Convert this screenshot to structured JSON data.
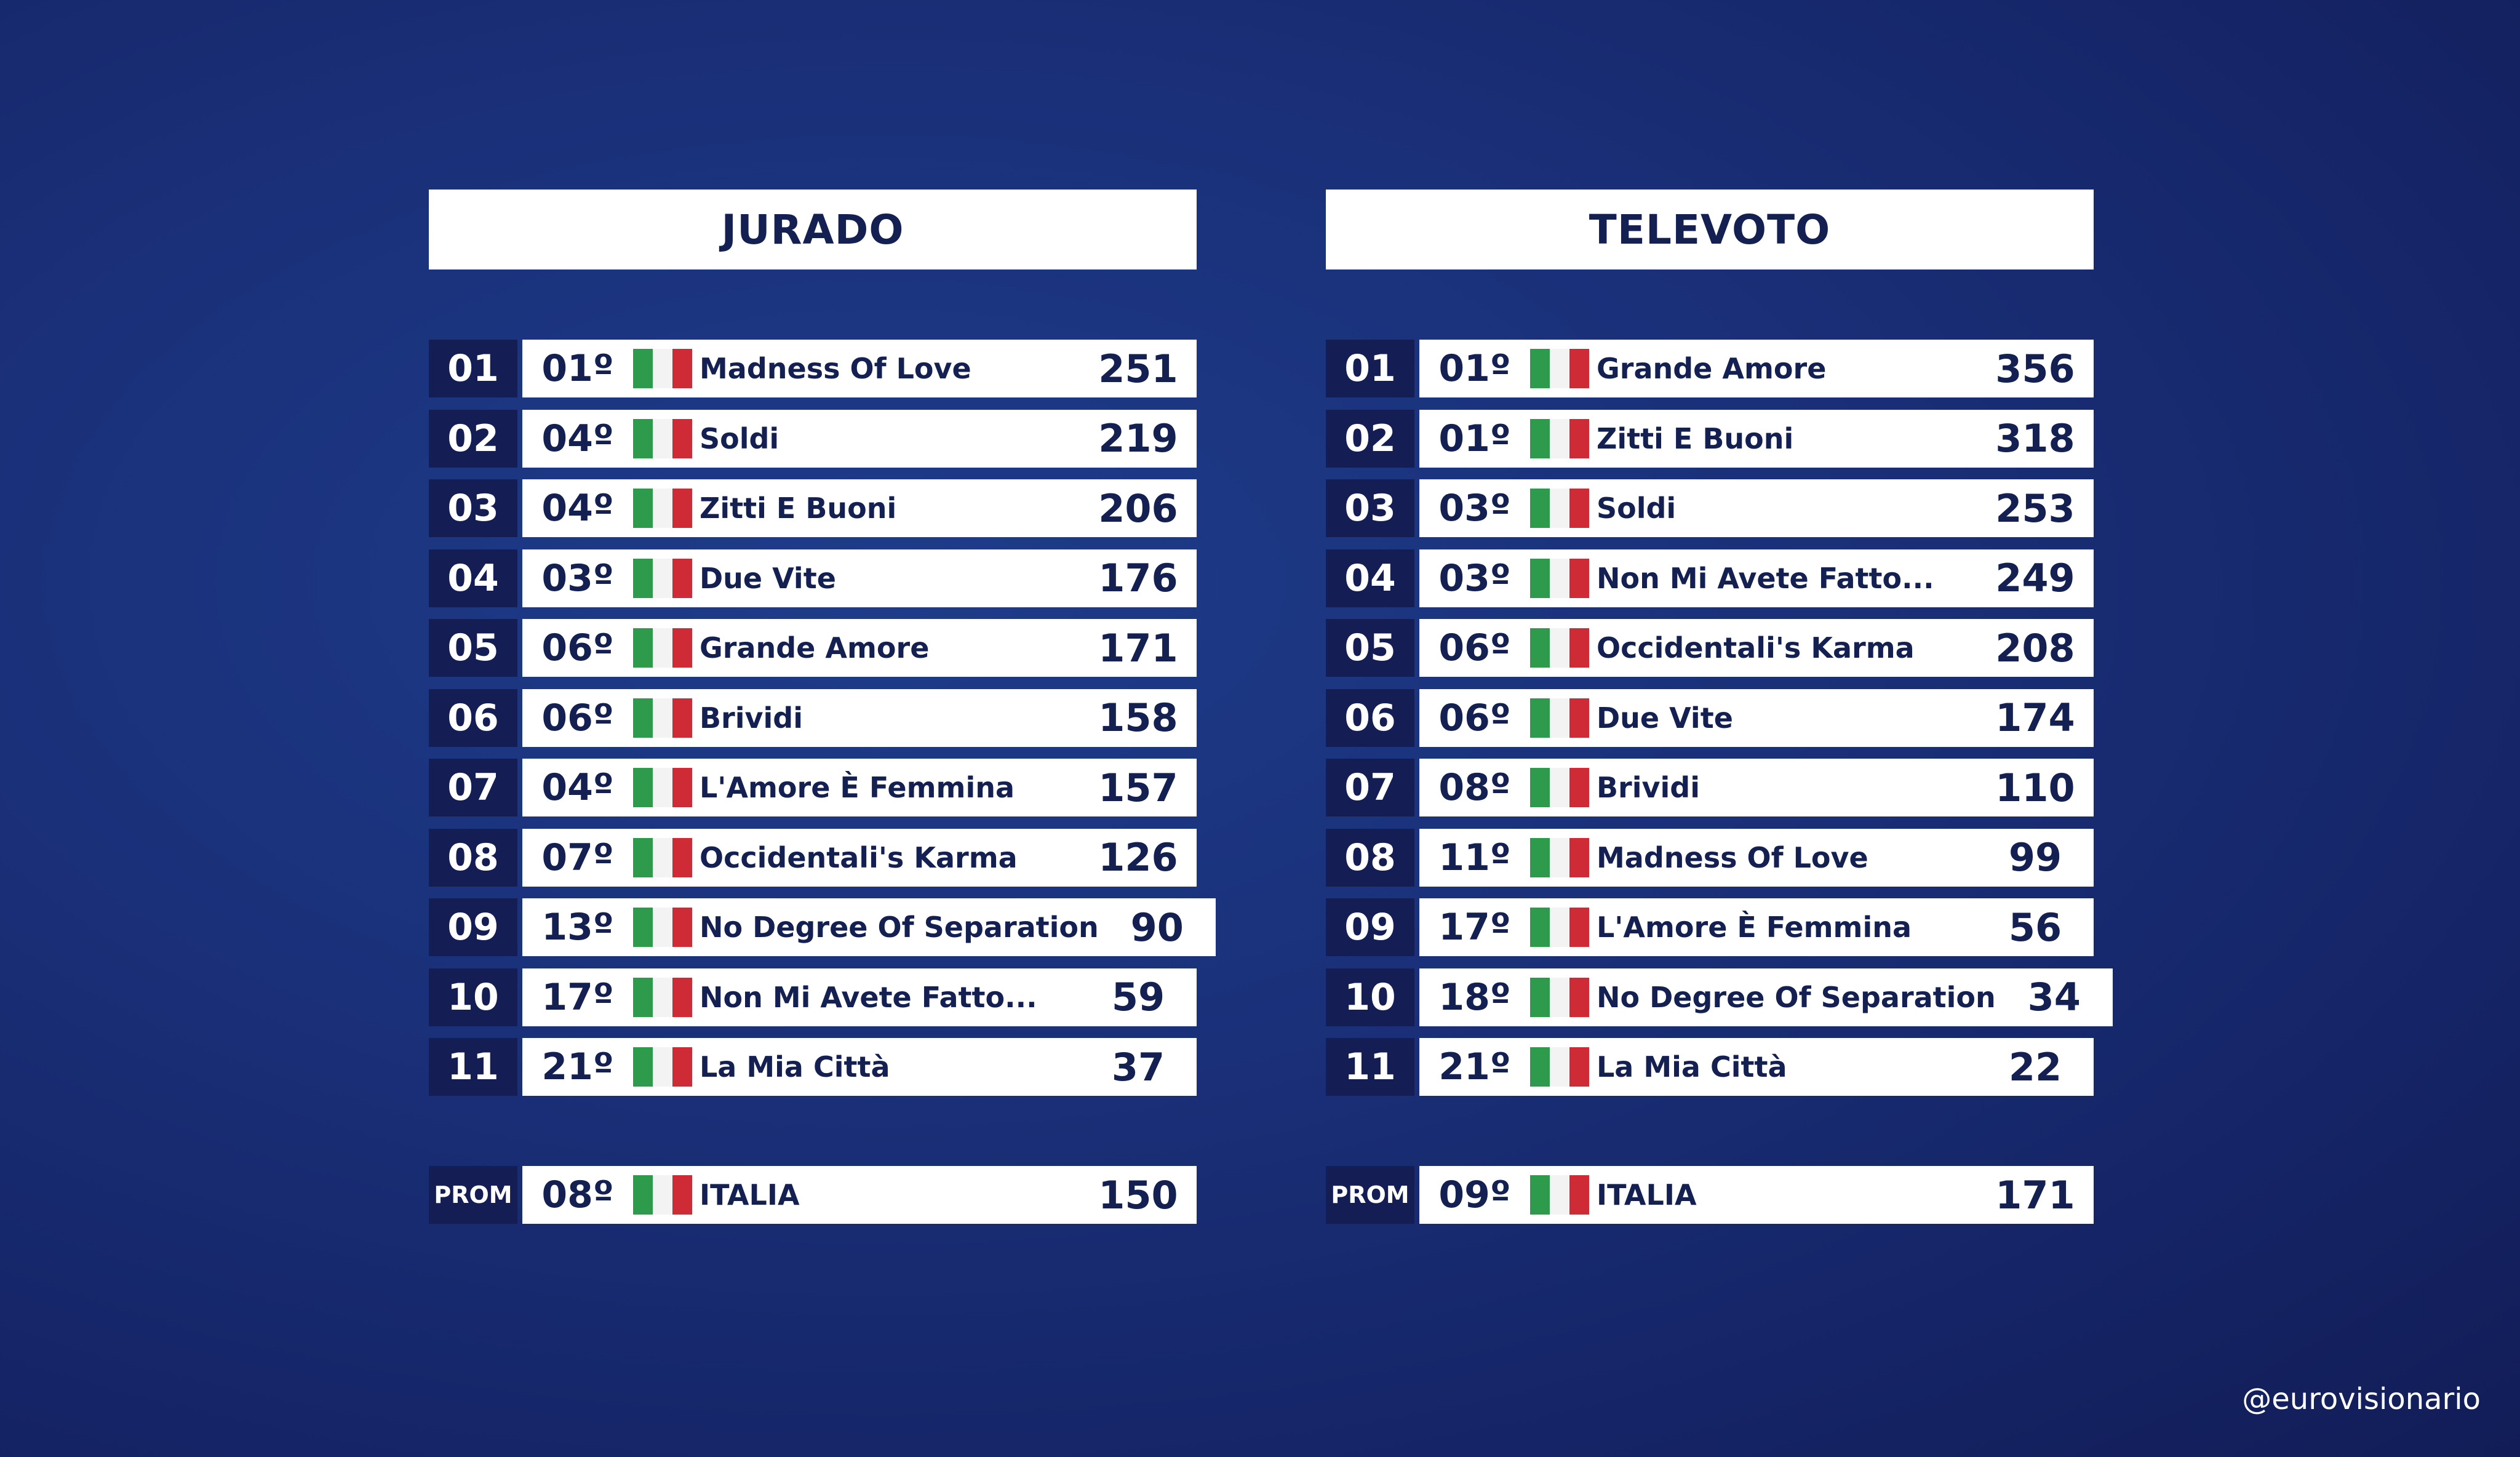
{
  "jurado": {
    "title": "JURADO",
    "rows": [
      {
        "rank": "01",
        "pos": "01º",
        "song": "Madness Of Love",
        "points": "251"
      },
      {
        "rank": "02",
        "pos": "04º",
        "song": "Soldi",
        "points": "219"
      },
      {
        "rank": "03",
        "pos": "04º",
        "song": "Zitti E Buoni",
        "points": "206"
      },
      {
        "rank": "04",
        "pos": "03º",
        "song": "Due Vite",
        "points": "176"
      },
      {
        "rank": "05",
        "pos": "06º",
        "song": "Grande Amore",
        "points": "171"
      },
      {
        "rank": "06",
        "pos": "06º",
        "song": "Brividi",
        "points": "158"
      },
      {
        "rank": "07",
        "pos": "04º",
        "song": "L'Amore È Femmina",
        "points": "157"
      },
      {
        "rank": "08",
        "pos": "07º",
        "song": "Occidentali's Karma",
        "points": "126"
      },
      {
        "rank": "09",
        "pos": "13º",
        "song": "No Degree Of Separation",
        "points": "90"
      },
      {
        "rank": "10",
        "pos": "17º",
        "song": "Non Mi Avete Fatto...",
        "points": "59"
      },
      {
        "rank": "11",
        "pos": "21º",
        "song": "La Mia Città",
        "points": "37"
      }
    ],
    "prom": {
      "rank": "PROM",
      "pos": "08º",
      "song": "ITALIA",
      "points": "150"
    }
  },
  "televoto": {
    "title": "TELEVOTO",
    "rows": [
      {
        "rank": "01",
        "pos": "01º",
        "song": "Grande Amore",
        "points": "356"
      },
      {
        "rank": "02",
        "pos": "01º",
        "song": "Zitti E Buoni",
        "points": "318"
      },
      {
        "rank": "03",
        "pos": "03º",
        "song": "Soldi",
        "points": "253"
      },
      {
        "rank": "04",
        "pos": "03º",
        "song": "Non Mi Avete Fatto...",
        "points": "249"
      },
      {
        "rank": "05",
        "pos": "06º",
        "song": "Occidentali's Karma",
        "points": "208"
      },
      {
        "rank": "06",
        "pos": "06º",
        "song": "Due Vite",
        "points": "174"
      },
      {
        "rank": "07",
        "pos": "08º",
        "song": "Brividi",
        "points": "110"
      },
      {
        "rank": "08",
        "pos": "11º",
        "song": "Madness Of Love",
        "points": "99"
      },
      {
        "rank": "09",
        "pos": "17º",
        "song": "L'Amore È Femmina",
        "points": "56"
      },
      {
        "rank": "10",
        "pos": "18º",
        "song": "No Degree Of Separation",
        "points": "34"
      },
      {
        "rank": "11",
        "pos": "21º",
        "song": "La Mia Città",
        "points": "22"
      }
    ],
    "prom": {
      "rank": "PROM",
      "pos": "09º",
      "song": "ITALIA",
      "points": "171"
    }
  },
  "flag_icon": "italy-flag-icon",
  "colors": {
    "navy": "#141f52",
    "flag_green": "#2e9a4c",
    "flag_white": "#f3f3f3",
    "flag_red": "#cf2b37"
  },
  "handle": "@eurovisionario"
}
